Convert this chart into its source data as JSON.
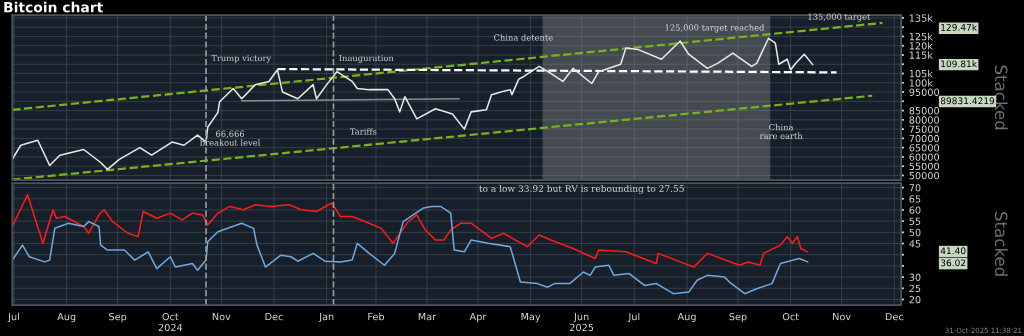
{
  "chart_data": [
    {
      "type": "line",
      "title": "Bitcoin chart",
      "ylabel": "Stacked",
      "xlim": [
        "2024-07-15",
        "2025-12-20"
      ],
      "ylim": [
        47500,
        136500
      ],
      "xticks": [
        {
          "value": "2024-07-16",
          "label": null
        },
        {
          "value": "2024-08-16",
          "label": null
        },
        {
          "value": "2024-09-15",
          "label": null
        },
        {
          "value": "2024-10-16",
          "label": null
        },
        {
          "value": "2024-11-15",
          "label": null
        },
        {
          "value": "2024-12-16",
          "label": null
        },
        {
          "value": "2025-01-16",
          "label": null
        },
        {
          "value": "2025-02-14",
          "label": null
        },
        {
          "value": "2025-03-16",
          "label": null
        },
        {
          "value": "2025-04-15",
          "label": null
        },
        {
          "value": "2025-05-16",
          "label": null
        },
        {
          "value": "2025-06-15",
          "label": null
        },
        {
          "value": "2025-07-16",
          "label": null
        },
        {
          "value": "2025-08-16",
          "label": null
        },
        {
          "value": "2025-09-15",
          "label": null
        },
        {
          "value": "2025-10-16",
          "label": null
        },
        {
          "value": "2025-11-15",
          "label": null
        },
        {
          "value": "2025-12-16",
          "label": null
        }
      ],
      "yticks": [
        50000,
        55000,
        60000,
        65000,
        70000,
        75000,
        80000,
        85000,
        {
          "value": 90000,
          "label": null
        },
        95000,
        {
          "value": 100000,
          "label": "100k"
        },
        {
          "value": 105000,
          "label": "105k"
        },
        {
          "value": 110000,
          "label": null
        },
        {
          "value": 115000,
          "label": "115k"
        },
        {
          "value": 120000,
          "label": "120k"
        },
        {
          "value": 125000,
          "label": "125k"
        },
        {
          "value": 130000,
          "label": null
        },
        {
          "value": 135000,
          "label": "135k"
        }
      ],
      "tick_labels": "y",
      "grid": true,
      "series": [
        {
          "type": "line",
          "color": "#7ab317",
          "line_style": "dashed",
          "x": [
            "2024-07-15",
            "2025-12-09"
          ],
          "values": [
            85400,
            132300
          ]
        },
        {
          "type": "line",
          "color": "#7ab317",
          "line_style": "dashed",
          "x": [
            "2024-07-15",
            "2025-12-03"
          ],
          "values": [
            47800,
            93000
          ]
        },
        {
          "type": "line",
          "color": "#ffffff",
          "line_style": "dashed",
          "x": [
            "2024-12-18",
            "2025-11-12"
          ],
          "values": [
            107400,
            105600
          ]
        },
        {
          "type": "line",
          "color": "#8a8a8a",
          "x": [
            "2024-11-27",
            "2025-04-04"
          ],
          "values": [
            90300,
            91400
          ]
        },
        {
          "type": "line",
          "color": "#e8e8e8",
          "x": [
            "2024-07-15",
            "2024-07-20",
            "2024-07-30",
            "2024-08-06",
            "2024-08-12",
            "2024-08-26",
            "2024-09-05",
            "2024-09-09",
            "2024-09-16",
            "2024-09-28",
            "2024-10-05",
            "2024-10-17",
            "2024-10-24",
            "2024-11-01",
            "2024-11-06",
            "2024-11-07",
            "2024-11-13",
            "2024-11-14",
            "2024-11-22",
            "2024-11-27",
            "2024-12-05",
            "2024-12-13",
            "2024-12-18",
            "2024-12-21",
            "2024-12-30",
            "2025-01-08",
            "2025-01-10",
            "2025-01-16",
            "2025-01-22",
            "2025-01-31",
            "2025-02-03",
            "2025-02-10",
            "2025-02-21",
            "2025-02-25",
            "2025-02-28",
            "2025-03-03",
            "2025-03-10",
            "2025-03-21",
            "2025-03-31",
            "2025-04-07",
            "2025-04-11",
            "2025-04-20",
            "2025-04-23",
            "2025-04-29",
            "2025-05-04",
            "2025-05-05",
            "2025-05-09",
            "2025-05-12",
            "2025-05-21",
            "2025-05-28",
            "2025-06-04",
            "2025-06-10",
            "2025-06-21",
            "2025-06-25",
            "2025-07-08",
            "2025-07-11",
            "2025-07-18",
            "2025-08-01",
            "2025-08-12",
            "2025-08-17",
            "2025-08-28",
            "2025-09-03",
            "2025-09-12",
            "2025-09-23",
            "2025-09-26",
            "2025-10-03",
            "2025-10-07",
            "2025-10-09",
            "2025-10-14",
            "2025-10-16",
            "2025-10-19",
            "2025-10-24",
            "2025-10-29"
          ],
          "values": [
            58700,
            66300,
            69000,
            55400,
            60900,
            64000,
            57000,
            53300,
            58700,
            65000,
            61000,
            68000,
            66300,
            71800,
            68000,
            76000,
            84000,
            89800,
            96900,
            91400,
            99000,
            100700,
            107000,
            95000,
            91400,
            99000,
            91400,
            99000,
            106000,
            100700,
            96900,
            96300,
            96300,
            91400,
            84300,
            92500,
            80500,
            86000,
            83200,
            75000,
            84300,
            85400,
            93600,
            95200,
            96300,
            93600,
            102000,
            103400,
            108800,
            105000,
            100700,
            107800,
            99600,
            106000,
            110000,
            118700,
            118000,
            112700,
            122500,
            115400,
            107800,
            110500,
            116000,
            108800,
            110500,
            124000,
            121400,
            110000,
            112700,
            107000,
            110500,
            115400,
            109800
          ]
        }
      ],
      "ref_lines": [
        {
          "axis": "x",
          "value": "2024-11-06",
          "label": "Trump victory",
          "color": "#9a9a9a",
          "line_style": "dashed"
        },
        {
          "axis": "x",
          "value": "2025-01-20",
          "label": "Inauguration",
          "color": "#9a9a9a",
          "line_style": "dashed"
        }
      ],
      "bands": [
        {
          "axis": "x",
          "from": "2025-05-23",
          "to": "2025-10-04",
          "color": "#9a9a9a"
        }
      ],
      "annotations": [
        "66,666\nbreakout level",
        "Tariffs",
        "China detente",
        "125,000 target reached",
        "135,000 target",
        "China\nrare earth",
        "129.47k",
        "109.81k",
        "89831.4219"
      ]
    },
    {
      "type": "line",
      "ylabel": "Stacked",
      "xlim": [
        "2024-07-15",
        "2025-12-20"
      ],
      "ylim": [
        17.5,
        72
      ],
      "xticks": [
        {
          "value": "2024-07-16",
          "label": "Jul"
        },
        {
          "value": "2024-08-16",
          "label": "Aug"
        },
        {
          "value": "2024-09-15",
          "label": "Sep"
        },
        {
          "value": "2024-10-16",
          "label": "Oct\n2024"
        },
        {
          "value": "2024-11-15",
          "label": "Nov"
        },
        {
          "value": "2024-12-16",
          "label": "Dec"
        },
        {
          "value": "2025-01-16",
          "label": "Jan"
        },
        {
          "value": "2025-02-14",
          "label": "Feb"
        },
        {
          "value": "2025-03-16",
          "label": "Mar"
        },
        {
          "value": "2025-04-15",
          "label": "Apr"
        },
        {
          "value": "2025-05-16",
          "label": "May"
        },
        {
          "value": "2025-06-15",
          "label": "Jun\n2025"
        },
        {
          "value": "2025-07-16",
          "label": "Jul"
        },
        {
          "value": "2025-08-16",
          "label": "Aug"
        },
        {
          "value": "2025-09-15",
          "label": "Sep"
        },
        {
          "value": "2025-10-16",
          "label": "Oct"
        },
        {
          "value": "2025-11-15",
          "label": "Nov"
        },
        {
          "value": "2025-12-16",
          "label": "Dec"
        }
      ],
      "yticks": [
        20,
        25,
        30,
        {
          "value": 35,
          "label": null
        },
        {
          "value": 40,
          "label": null
        },
        45,
        50,
        55,
        60,
        65,
        70
      ],
      "grid": true,
      "series": [
        {
          "color": "#ff1a1a",
          "x": [
            "2024-07-15",
            "2024-07-24",
            "2024-08-02",
            "2024-08-08",
            "2024-08-10",
            "2024-08-15",
            "2024-08-26",
            "2024-08-29",
            "2024-09-04",
            "2024-09-07",
            "2024-09-12",
            "2024-09-21",
            "2024-09-27",
            "2024-09-30",
            "2024-10-08",
            "2024-10-16",
            "2024-10-23",
            "2024-10-29",
            "2024-11-04",
            "2024-11-07",
            "2024-11-13",
            "2024-11-20",
            "2024-11-28",
            "2024-12-05",
            "2024-12-14",
            "2024-12-25",
            "2025-01-01",
            "2025-01-10",
            "2025-01-19",
            "2025-01-24",
            "2025-01-31",
            "2025-02-10",
            "2025-02-17",
            "2025-02-24",
            "2025-03-05",
            "2025-03-10",
            "2025-03-15",
            "2025-03-21",
            "2025-03-26",
            "2025-03-30",
            "2025-04-05",
            "2025-04-11",
            "2025-04-23",
            "2025-04-30",
            "2025-05-14",
            "2025-05-21",
            "2025-05-28",
            "2025-06-10",
            "2025-06-23",
            "2025-06-25",
            "2025-07-11",
            "2025-07-29",
            "2025-07-30",
            "2025-08-12",
            "2025-08-20",
            "2025-08-28",
            "2025-09-16",
            "2025-09-21",
            "2025-09-28",
            "2025-09-30",
            "2025-10-10",
            "2025-10-14",
            "2025-10-17",
            "2025-10-20",
            "2025-10-22",
            "2025-10-26"
          ],
          "values": [
            52.6,
            66.8,
            45.1,
            60.1,
            56.3,
            57.1,
            52.6,
            49.6,
            57.8,
            60.1,
            54.8,
            49.6,
            48.1,
            59.3,
            56.3,
            58.6,
            55.6,
            58.6,
            57.8,
            53.3,
            58.6,
            61.6,
            60.1,
            62.3,
            61.6,
            62.3,
            60.1,
            59.3,
            63.1,
            57.1,
            57.1,
            54.1,
            51.8,
            45.1,
            54.8,
            57.8,
            51.1,
            46.6,
            46.6,
            51.1,
            54.1,
            54.1,
            47.3,
            49.6,
            43.6,
            48.8,
            46.6,
            42.8,
            38.3,
            42.1,
            41.3,
            36.1,
            40.6,
            36.8,
            34.5,
            40.6,
            35.3,
            36.8,
            35.3,
            40.6,
            44.3,
            48.1,
            45.1,
            48.1,
            42.8,
            41.3
          ]
        },
        {
          "color": "#6fa8dc",
          "x": [
            "2024-07-15",
            "2024-07-21",
            "2024-07-25",
            "2024-08-03",
            "2024-08-06",
            "2024-08-09",
            "2024-08-17",
            "2024-08-26",
            "2024-08-29",
            "2024-09-04",
            "2024-09-05",
            "2024-09-09",
            "2024-09-19",
            "2024-09-25",
            "2024-10-03",
            "2024-10-08",
            "2024-10-16",
            "2024-10-19",
            "2024-10-29",
            "2024-11-01",
            "2024-11-06",
            "2024-11-07",
            "2024-11-13",
            "2024-11-27",
            "2024-12-04",
            "2024-12-06",
            "2024-12-11",
            "2024-12-20",
            "2024-12-26",
            "2024-12-30",
            "2025-01-08",
            "2025-01-15",
            "2025-01-24",
            "2025-01-31",
            "2025-02-03",
            "2025-02-10",
            "2025-02-19",
            "2025-02-25",
            "2025-03-02",
            "2025-03-14",
            "2025-03-19",
            "2025-03-24",
            "2025-03-30",
            "2025-04-01",
            "2025-04-07",
            "2025-04-11",
            "2025-04-21",
            "2025-05-04",
            "2025-05-10",
            "2025-05-20",
            "2025-05-26",
            "2025-05-30",
            "2025-06-08",
            "2025-06-16",
            "2025-06-20",
            "2025-06-23",
            "2025-07-01",
            "2025-07-04",
            "2025-07-13",
            "2025-07-22",
            "2025-07-29",
            "2025-08-08",
            "2025-08-17",
            "2025-08-22",
            "2025-08-28",
            "2025-09-07",
            "2025-09-10",
            "2025-09-19",
            "2025-09-26",
            "2025-10-05",
            "2025-10-10",
            "2025-10-21",
            "2025-10-26"
          ],
          "values": [
            37.6,
            44.3,
            39.1,
            36.8,
            37.6,
            51.8,
            54.1,
            52.6,
            54.8,
            52.6,
            44.3,
            42.1,
            42.1,
            37.6,
            41.3,
            33.8,
            39.1,
            34.5,
            36.1,
            33.1,
            37.6,
            45.8,
            50.3,
            54.1,
            51.8,
            44.3,
            34.5,
            39.8,
            39.1,
            37.1,
            40.6,
            37.1,
            36.8,
            37.6,
            45.1,
            40.6,
            35.3,
            40.6,
            54.8,
            60.9,
            61.6,
            61.6,
            58.6,
            42.1,
            41.3,
            46.6,
            45.1,
            43.6,
            27.8,
            27.1,
            25.5,
            27.1,
            27.1,
            32.3,
            30.8,
            34.5,
            35.3,
            30.8,
            31.6,
            26.3,
            27.1,
            22.6,
            23.3,
            28.6,
            30.8,
            30.1,
            27.8,
            22.6,
            24.8,
            27.1,
            36.1,
            38.3,
            36.8
          ]
        }
      ],
      "ref_lines": [
        {
          "axis": "x",
          "value": "2024-11-06",
          "color": "#9a9a9a",
          "line_style": "dashed"
        },
        {
          "axis": "x",
          "value": "2025-01-20",
          "color": "#9a9a9a",
          "line_style": "dashed"
        }
      ],
      "annotations": [
        "to a low 33.92 but RV is rebounding to 27.55",
        "31-Oct-2025 11:38:21",
        "41.40",
        "36.02"
      ]
    }
  ]
}
